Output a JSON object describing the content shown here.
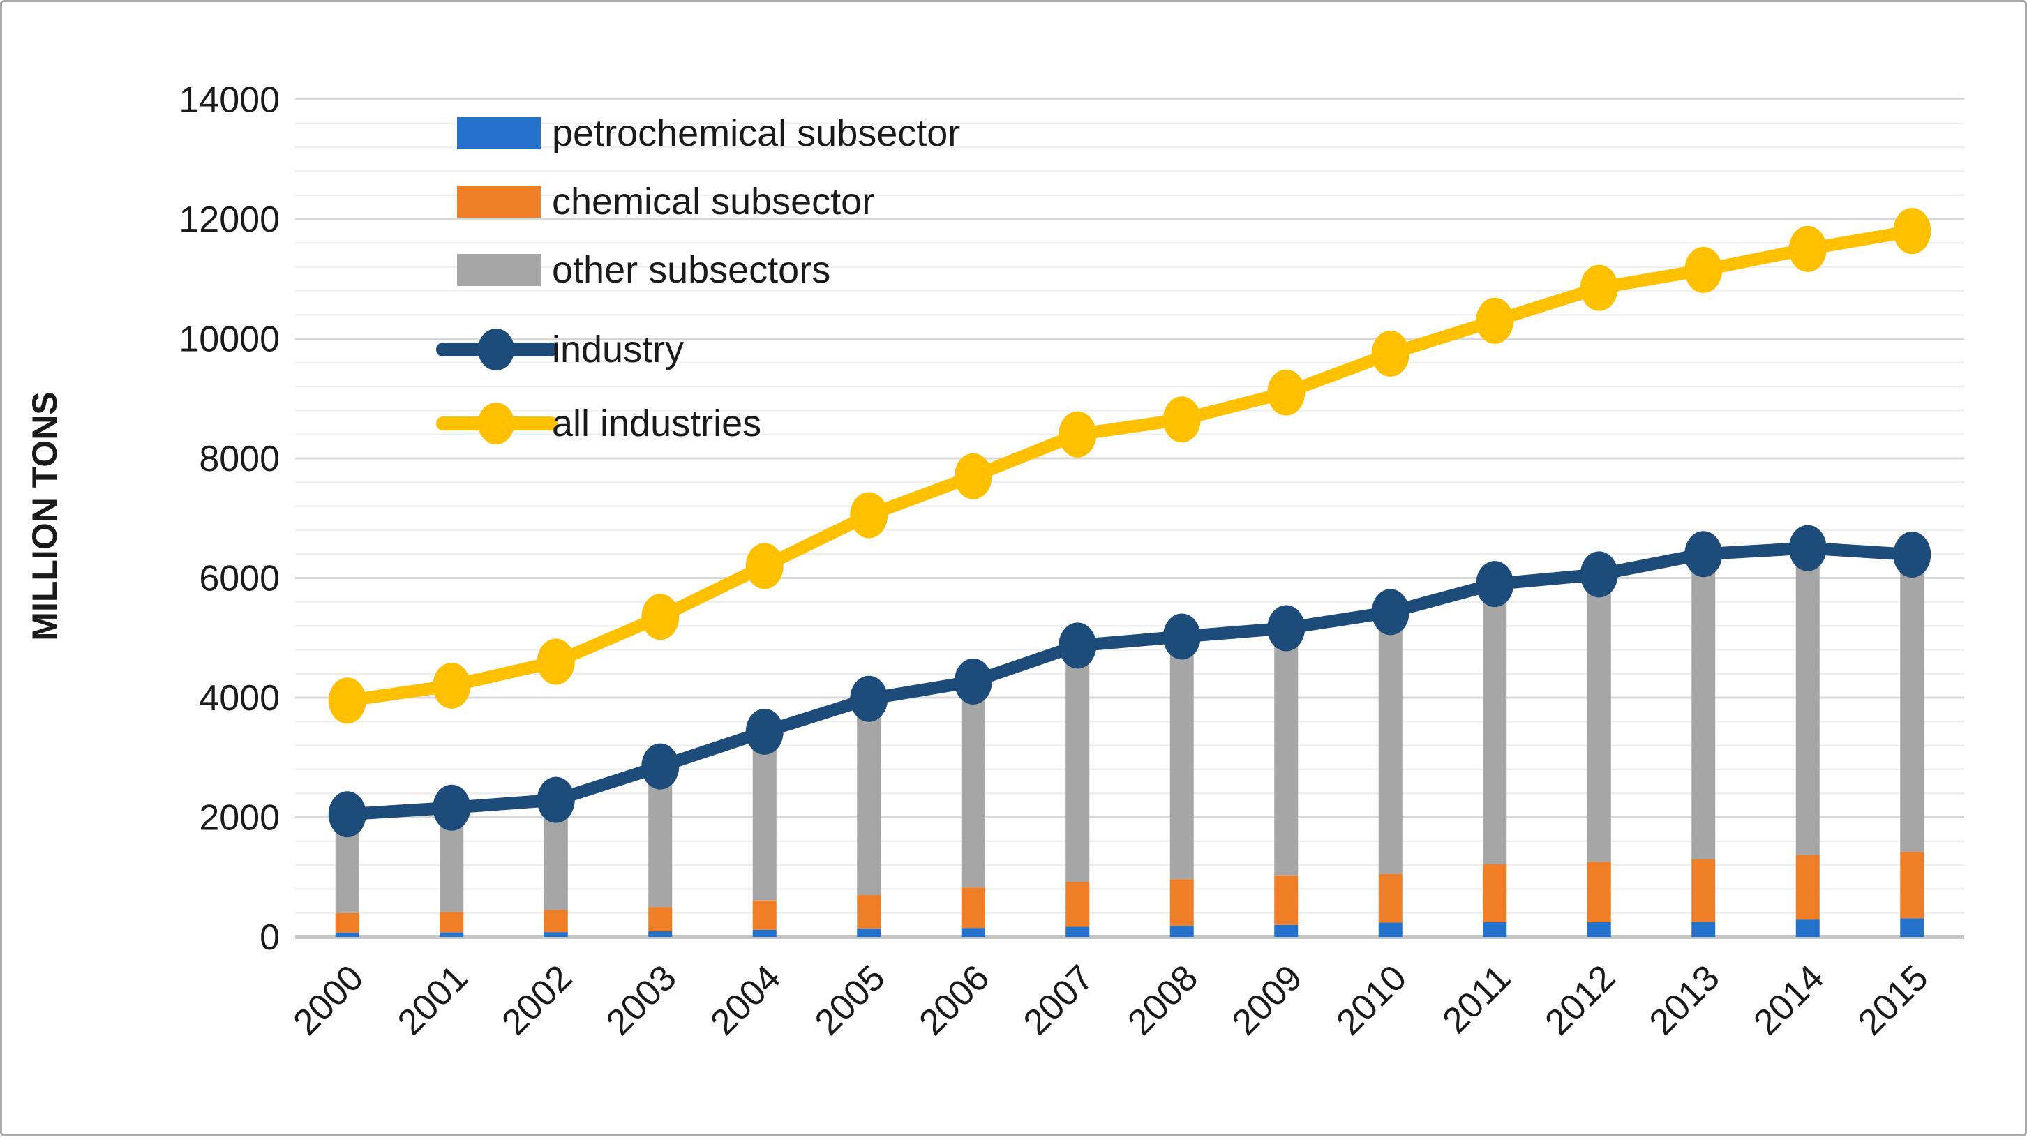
{
  "figure": {
    "title": "",
    "y_axis_title": "MILLION TONS"
  },
  "chart_data": {
    "type": "combo-stacked-bar-and-line",
    "title": "",
    "xlabel": "",
    "ylabel": "MILLION TONS",
    "ylim": [
      0,
      14000
    ],
    "y_major_unit": 2000,
    "y_minor_unit": 400,
    "y_tick_labels": [
      "0",
      "2000",
      "4000",
      "6000",
      "8000",
      "10000",
      "12000",
      "14000"
    ],
    "grid": "on",
    "legend_position": "inside-upper-left",
    "categories": [
      "2000",
      "2001",
      "2002",
      "2003",
      "2004",
      "2005",
      "2006",
      "2007",
      "2008",
      "2009",
      "2010",
      "2011",
      "2012",
      "2013",
      "2014",
      "2015"
    ],
    "bar_series": [
      {
        "name": "petrochemical subsector",
        "color": "#2472cc",
        "values": [
          70,
          75,
          80,
          95,
          120,
          140,
          150,
          170,
          185,
          200,
          240,
          245,
          245,
          250,
          290,
          310
        ]
      },
      {
        "name": "chemical subsector",
        "color": "#f07e27",
        "values": [
          330,
          340,
          370,
          405,
          490,
          560,
          675,
          750,
          780,
          830,
          810,
          970,
          1010,
          1045,
          1080,
          1110
        ]
      },
      {
        "name": "other subsectors",
        "color": "#a6a6a6",
        "values": [
          1650,
          1745,
          1840,
          2350,
          2820,
          3280,
          3445,
          3950,
          4055,
          4130,
          4380,
          4685,
          4805,
          5105,
          5130,
          4970
        ]
      }
    ],
    "line_series": [
      {
        "name": "industry",
        "color": "#1e4c7a",
        "values": [
          2050,
          2160,
          2290,
          2850,
          3430,
          3980,
          4270,
          4870,
          5020,
          5160,
          5430,
          5900,
          6060,
          6400,
          6500,
          6390
        ]
      },
      {
        "name": "all industries",
        "color": "#ffc000",
        "values": [
          3950,
          4200,
          4600,
          5350,
          6200,
          7050,
          7700,
          8400,
          8650,
          9100,
          9750,
          10300,
          10850,
          11150,
          11500,
          11800
        ]
      }
    ],
    "style": {
      "axis_text_color": "#1a1a1a",
      "minor_grid_color": "#efefef",
      "major_grid_color": "#d8d8d8",
      "axis_line_color": "#c6c6c6",
      "plot_bg": "#ffffff"
    }
  }
}
